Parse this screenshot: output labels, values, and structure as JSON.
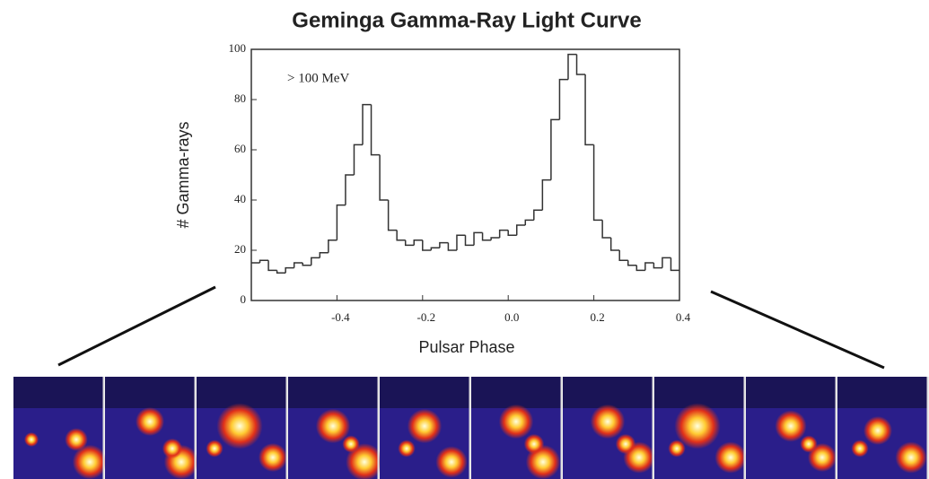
{
  "chart_data": {
    "type": "histogram",
    "title": "Geminga Gamma-Ray Light Curve",
    "x_label": "Pulsar Phase",
    "y_label": "# Gamma-rays",
    "annotation": "> 100 MeV",
    "bins": [
      -0.6,
      -0.58,
      -0.56,
      -0.54,
      -0.52,
      -0.5,
      -0.48,
      -0.46,
      -0.44,
      -0.42,
      -0.4,
      -0.38,
      -0.36,
      -0.34,
      -0.32,
      -0.3,
      -0.28,
      -0.26,
      -0.24,
      -0.22,
      -0.2,
      -0.18,
      -0.16,
      -0.14,
      -0.12,
      -0.1,
      -0.08,
      -0.06,
      -0.04,
      -0.02,
      0,
      0.02,
      0.04,
      0.06,
      0.08,
      0.1,
      0.12,
      0.14,
      0.16,
      0.18,
      0.2,
      0.22,
      0.24,
      0.26,
      0.28,
      0.3,
      0.32,
      0.34,
      0.36,
      0.38,
      0.4
    ],
    "values": [
      15,
      16,
      12,
      11,
      13,
      15,
      14,
      17,
      19,
      24,
      38,
      50,
      62,
      78,
      58,
      40,
      28,
      24,
      22,
      24,
      20,
      21,
      23,
      20,
      26,
      22,
      27,
      24,
      25,
      28,
      26,
      30,
      32,
      36,
      48,
      72,
      88,
      98,
      90,
      62,
      32,
      25,
      20,
      16,
      14,
      12,
      15,
      13,
      17,
      12
    ],
    "color": "#333333",
    "xlim": [
      -0.6,
      0.4
    ],
    "ylim": [
      0,
      100
    ],
    "xticks": [
      -0.4,
      -0.2,
      {
        "value": 0,
        "label": "0.0"
      },
      0.2,
      0.4
    ],
    "yticks": [
      0,
      20,
      40,
      60,
      80,
      100
    ]
  }
}
